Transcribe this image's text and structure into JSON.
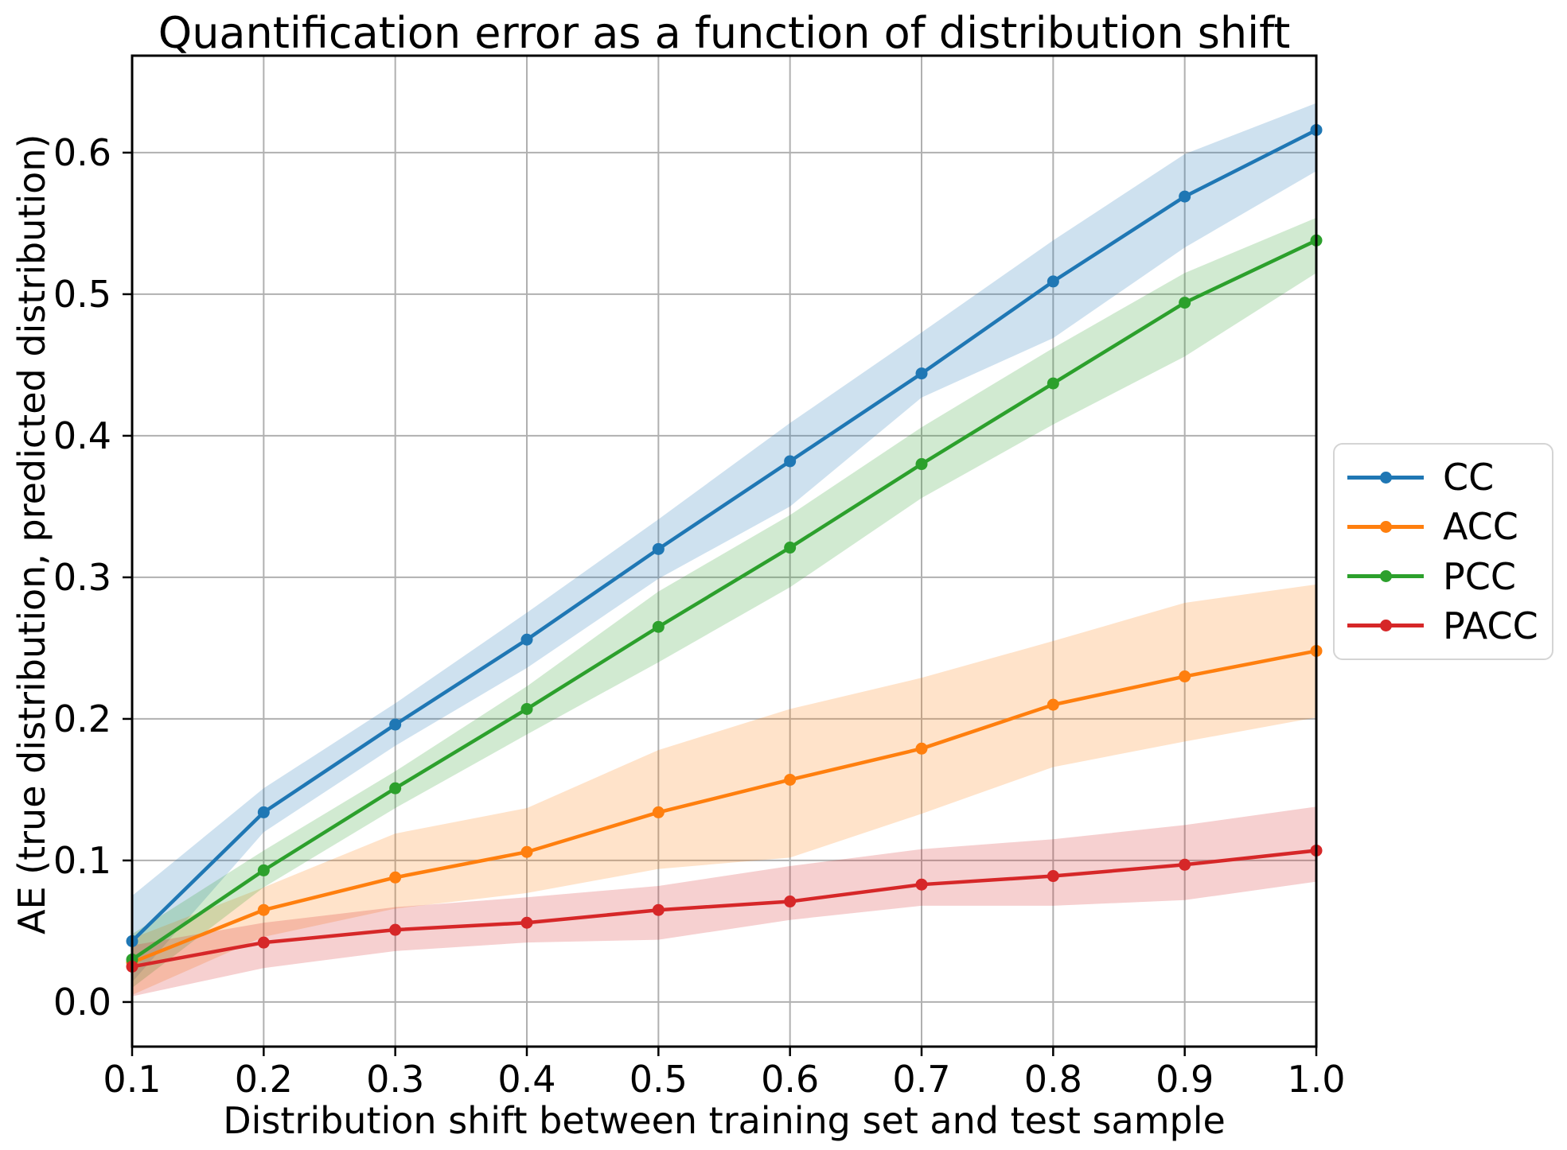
{
  "chart_data": {
    "type": "line",
    "title": "Quantification error as a function of distribution shift",
    "xlabel": "Distribution shift between training set and test sample",
    "ylabel": "AE (true distribution, predicted distribution)",
    "x": [
      0.1,
      0.2,
      0.3,
      0.4,
      0.5,
      0.6,
      0.7,
      0.8,
      0.9,
      1.0
    ],
    "x_tick_labels": [
      "0.1",
      "0.2",
      "0.3",
      "0.4",
      "0.5",
      "0.6",
      "0.7",
      "0.8",
      "0.9",
      "1.0"
    ],
    "y_ticks": [
      0.0,
      0.1,
      0.2,
      0.3,
      0.4,
      0.5,
      0.6
    ],
    "y_tick_labels": [
      "0.0",
      "0.1",
      "0.2",
      "0.3",
      "0.4",
      "0.5",
      "0.6"
    ],
    "xlim": [
      0.1,
      1.0
    ],
    "ylim": [
      -0.0315,
      0.6685
    ],
    "grid": true,
    "grid_color": "#b0b0b0",
    "legend_position": "outside-right",
    "band_alpha": 0.22,
    "series": [
      {
        "name": "CC",
        "color": "#1f77b4",
        "values": [
          0.043,
          0.134,
          0.196,
          0.256,
          0.32,
          0.382,
          0.444,
          0.509,
          0.569,
          0.616
        ],
        "band_lower": [
          0.014,
          0.12,
          0.181,
          0.236,
          0.299,
          0.35,
          0.427,
          0.469,
          0.533,
          0.587
        ],
        "band_upper": [
          0.075,
          0.151,
          0.211,
          0.275,
          0.341,
          0.409,
          0.473,
          0.538,
          0.599,
          0.635
        ]
      },
      {
        "name": "ACC",
        "color": "#ff7f0e",
        "values": [
          0.028,
          0.065,
          0.088,
          0.106,
          0.134,
          0.157,
          0.179,
          0.21,
          0.23,
          0.248
        ],
        "band_lower": [
          0.005,
          0.046,
          0.066,
          0.077,
          0.094,
          0.102,
          0.133,
          0.166,
          0.184,
          0.201
        ],
        "band_upper": [
          0.045,
          0.081,
          0.119,
          0.137,
          0.178,
          0.207,
          0.229,
          0.255,
          0.282,
          0.295
        ]
      },
      {
        "name": "PCC",
        "color": "#2ca02c",
        "values": [
          0.03,
          0.093,
          0.151,
          0.207,
          0.265,
          0.321,
          0.38,
          0.437,
          0.494,
          0.538
        ],
        "band_lower": [
          0.01,
          0.081,
          0.137,
          0.189,
          0.24,
          0.293,
          0.356,
          0.408,
          0.456,
          0.515
        ],
        "band_upper": [
          0.048,
          0.107,
          0.163,
          0.223,
          0.29,
          0.344,
          0.406,
          0.462,
          0.515,
          0.554
        ]
      },
      {
        "name": "PACC",
        "color": "#d62728",
        "values": [
          0.025,
          0.042,
          0.051,
          0.056,
          0.065,
          0.071,
          0.083,
          0.089,
          0.097,
          0.107
        ],
        "band_lower": [
          0.004,
          0.024,
          0.036,
          0.042,
          0.044,
          0.058,
          0.068,
          0.068,
          0.072,
          0.085
        ],
        "band_upper": [
          0.04,
          0.056,
          0.067,
          0.074,
          0.082,
          0.096,
          0.108,
          0.115,
          0.125,
          0.138
        ]
      }
    ]
  }
}
